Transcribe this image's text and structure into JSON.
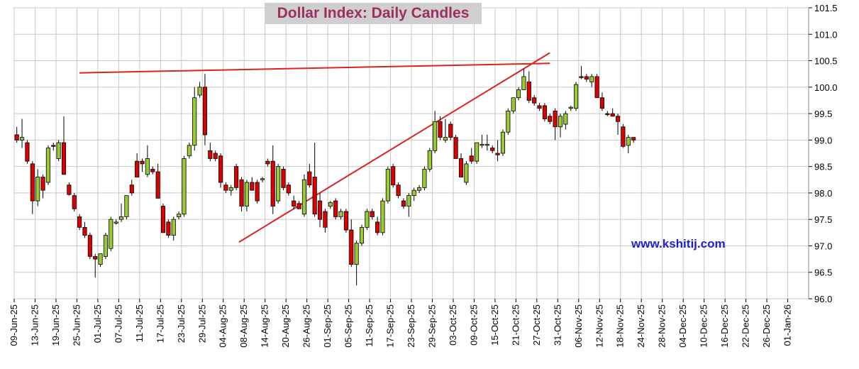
{
  "chart_data": {
    "type": "candlestick",
    "title": "Dollar Index: Daily Candles",
    "watermark": "www.kshitij.com",
    "x_tick_labels": [
      "09-Jun-25",
      "13-Jun-25",
      "19-Jun-25",
      "25-Jun-25",
      "01-Jul-25",
      "07-Jul-25",
      "11-Jul-25",
      "17-Jul-25",
      "23-Jul-25",
      "29-Jul-25",
      "04-Aug-25",
      "08-Aug-25",
      "14-Aug-25",
      "20-Aug-25",
      "26-Aug-25",
      "01-Sep-25",
      "05-Sep-25",
      "11-Sep-25",
      "17-Sep-25",
      "23-Sep-25",
      "29-Sep-25",
      "03-Oct-25",
      "09-Oct-25",
      "15-Oct-25",
      "21-Oct-25",
      "27-Oct-25",
      "31-Oct-25",
      "06-Nov-25",
      "12-Nov-25",
      "18-Nov-25",
      "24-Nov-25",
      "28-Nov-25",
      "04-Dec-25",
      "10-Dec-25",
      "16-Dec-25",
      "22-Dec-25",
      "26-Dec-25",
      "01-Jan-26"
    ],
    "y_tick_labels": [
      "96.0",
      "96.5",
      "97.0",
      "97.5",
      "98.0",
      "98.5",
      "99.0",
      "99.5",
      "100.0",
      "100.5",
      "101.0",
      "101.5"
    ],
    "ylim": [
      96.0,
      101.5
    ],
    "axis_position": "right",
    "grid": true,
    "colors": {
      "up": "#99cc33",
      "down": "#dd0000",
      "trendline": "#dd2222",
      "grid": "#c8c8c8"
    },
    "candles": [
      [
        99.1,
        99.25,
        98.95,
        99.0
      ],
      [
        99.0,
        99.4,
        98.85,
        99.05
      ],
      [
        98.95,
        99.0,
        98.55,
        98.6
      ],
      [
        98.55,
        98.6,
        97.6,
        97.85
      ],
      [
        97.85,
        98.45,
        97.75,
        98.3
      ],
      [
        98.3,
        98.35,
        97.9,
        98.05
      ],
      [
        98.2,
        98.9,
        98.15,
        98.85
      ],
      [
        98.9,
        98.95,
        98.8,
        98.88
      ],
      [
        98.65,
        99.0,
        98.6,
        98.95
      ],
      [
        98.95,
        99.45,
        98.35,
        98.35
      ],
      [
        98.15,
        98.2,
        97.95,
        97.97
      ],
      [
        97.95,
        98.0,
        97.65,
        97.7
      ],
      [
        97.55,
        97.6,
        97.3,
        97.35
      ],
      [
        97.35,
        97.45,
        97.15,
        97.2
      ],
      [
        97.2,
        97.25,
        96.75,
        96.8
      ],
      [
        96.8,
        96.85,
        96.4,
        96.75
      ],
      [
        96.65,
        96.85,
        96.6,
        96.85
      ],
      [
        96.8,
        97.25,
        96.75,
        97.2
      ],
      [
        96.95,
        97.55,
        96.9,
        97.5
      ],
      [
        97.45,
        97.5,
        97.4,
        97.45
      ],
      [
        97.5,
        97.8,
        97.45,
        97.55
      ],
      [
        97.55,
        97.95,
        97.5,
        97.95
      ],
      [
        98.15,
        98.25,
        97.95,
        98.0
      ],
      [
        98.6,
        98.75,
        98.3,
        98.3
      ],
      [
        98.6,
        98.65,
        98.4,
        98.55
      ],
      [
        98.35,
        98.9,
        98.3,
        98.65
      ],
      [
        98.45,
        98.5,
        98.35,
        98.4
      ],
      [
        98.4,
        98.55,
        97.9,
        97.9
      ],
      [
        97.75,
        97.8,
        97.25,
        97.25
      ],
      [
        97.45,
        97.5,
        97.15,
        97.2
      ],
      [
        97.2,
        97.55,
        97.1,
        97.5
      ],
      [
        97.55,
        97.65,
        97.5,
        97.6
      ],
      [
        97.6,
        98.7,
        97.55,
        98.65
      ],
      [
        98.7,
        98.95,
        98.65,
        98.9
      ],
      [
        98.9,
        100.0,
        98.8,
        99.8
      ],
      [
        99.85,
        100.1,
        99.8,
        100.0
      ],
      [
        100.0,
        100.25,
        98.9,
        99.1
      ],
      [
        98.8,
        98.95,
        98.6,
        98.65
      ],
      [
        98.75,
        98.8,
        98.6,
        98.65
      ],
      [
        98.7,
        98.75,
        98.1,
        98.2
      ],
      [
        98.15,
        98.2,
        98.0,
        98.05
      ],
      [
        98.05,
        98.15,
        97.95,
        98.1
      ],
      [
        98.5,
        98.55,
        98.05,
        98.1
      ],
      [
        98.25,
        98.3,
        97.65,
        97.75
      ],
      [
        97.75,
        98.25,
        97.65,
        98.2
      ],
      [
        98.2,
        98.3,
        98.05,
        98.05
      ],
      [
        98.2,
        98.25,
        97.8,
        97.85
      ],
      [
        98.25,
        98.3,
        98.2,
        98.27
      ],
      [
        98.6,
        98.65,
        98.5,
        98.55
      ],
      [
        98.6,
        98.9,
        97.6,
        97.75
      ],
      [
        97.85,
        98.55,
        97.8,
        98.5
      ],
      [
        98.45,
        98.5,
        98.05,
        98.1
      ],
      [
        98.15,
        98.2,
        97.95,
        98.0
      ],
      [
        97.85,
        97.95,
        97.7,
        97.75
      ],
      [
        97.8,
        97.85,
        97.7,
        97.7
      ],
      [
        97.6,
        98.35,
        97.55,
        98.25
      ],
      [
        98.4,
        98.55,
        98.1,
        98.15
      ],
      [
        98.3,
        98.95,
        97.55,
        97.6
      ],
      [
        97.85,
        98.0,
        97.35,
        97.5
      ],
      [
        97.65,
        97.7,
        97.25,
        97.35
      ],
      [
        97.75,
        97.85,
        97.7,
        97.82
      ],
      [
        97.85,
        97.9,
        97.5,
        97.55
      ],
      [
        97.55,
        97.7,
        97.5,
        97.65
      ],
      [
        97.65,
        97.7,
        97.25,
        97.3
      ],
      [
        97.3,
        97.5,
        96.6,
        96.65
      ],
      [
        96.65,
        97.1,
        96.25,
        97.05
      ],
      [
        97.05,
        97.4,
        97.0,
        97.35
      ],
      [
        97.35,
        97.7,
        97.3,
        97.65
      ],
      [
        97.65,
        97.7,
        97.5,
        97.55
      ],
      [
        97.45,
        97.55,
        97.2,
        97.25
      ],
      [
        97.25,
        97.9,
        97.2,
        97.85
      ],
      [
        97.85,
        98.5,
        97.8,
        98.45
      ],
      [
        98.5,
        98.55,
        98.1,
        98.15
      ],
      [
        98.15,
        98.2,
        97.9,
        97.95
      ],
      [
        97.85,
        97.9,
        97.7,
        97.75
      ],
      [
        97.75,
        98.0,
        97.55,
        97.95
      ],
      [
        97.95,
        98.1,
        97.85,
        98.05
      ],
      [
        98.05,
        98.15,
        98.0,
        98.1
      ],
      [
        98.1,
        98.5,
        98.05,
        98.45
      ],
      [
        98.45,
        98.85,
        98.4,
        98.8
      ],
      [
        98.8,
        99.55,
        98.75,
        99.35
      ],
      [
        99.35,
        99.45,
        99.0,
        99.05
      ],
      [
        99.0,
        99.4,
        98.95,
        99.05
      ],
      [
        99.3,
        99.35,
        99.0,
        99.05
      ],
      [
        99.05,
        99.1,
        98.65,
        98.65
      ],
      [
        98.65,
        98.75,
        98.3,
        98.3
      ],
      [
        98.2,
        98.6,
        98.15,
        98.55
      ],
      [
        98.7,
        98.85,
        98.55,
        98.6
      ],
      [
        98.6,
        98.95,
        98.55,
        98.95
      ],
      [
        98.9,
        99.1,
        98.85,
        98.92
      ],
      [
        98.9,
        99.1,
        98.8,
        98.92
      ],
      [
        98.85,
        98.9,
        98.75,
        98.8
      ],
      [
        98.75,
        99.0,
        98.6,
        98.72
      ],
      [
        98.75,
        99.2,
        98.7,
        99.15
      ],
      [
        99.15,
        99.6,
        99.1,
        99.55
      ],
      [
        99.55,
        99.8,
        99.5,
        99.8
      ],
      [
        99.8,
        100.0,
        99.75,
        99.95
      ],
      [
        99.95,
        100.35,
        99.95,
        100.2
      ],
      [
        100.1,
        100.3,
        99.7,
        99.75
      ],
      [
        99.8,
        99.85,
        99.65,
        99.7
      ],
      [
        99.65,
        99.7,
        99.55,
        99.6
      ],
      [
        99.65,
        99.7,
        99.35,
        99.4
      ],
      [
        99.45,
        99.5,
        99.3,
        99.35
      ],
      [
        99.55,
        99.6,
        99.0,
        99.25
      ],
      [
        99.25,
        99.5,
        99.05,
        99.45
      ],
      [
        99.3,
        99.55,
        99.2,
        99.5
      ],
      [
        99.6,
        99.65,
        99.55,
        99.62
      ],
      [
        99.6,
        100.1,
        99.55,
        100.05
      ],
      [
        100.2,
        100.4,
        100.15,
        100.18
      ],
      [
        100.2,
        100.25,
        100.1,
        100.15
      ],
      [
        100.1,
        100.25,
        100.0,
        100.2
      ],
      [
        100.2,
        100.25,
        99.8,
        99.8
      ],
      [
        99.8,
        99.9,
        99.55,
        99.6
      ],
      [
        99.5,
        99.55,
        99.45,
        99.48
      ],
      [
        99.5,
        99.6,
        99.45,
        99.45
      ],
      [
        99.45,
        99.5,
        99.1,
        99.35
      ],
      [
        99.25,
        99.3,
        98.85,
        98.88
      ],
      [
        98.9,
        99.1,
        98.75,
        99.05
      ],
      [
        99.05,
        99.05,
        98.95,
        99.0
      ]
    ],
    "trendlines": [
      {
        "x1": 12.0,
        "y1": 100.27,
        "x2": 102.0,
        "y2": 100.45
      },
      {
        "x1": 42.5,
        "y1": 97.07,
        "x2": 102.0,
        "y2": 100.65
      }
    ]
  }
}
